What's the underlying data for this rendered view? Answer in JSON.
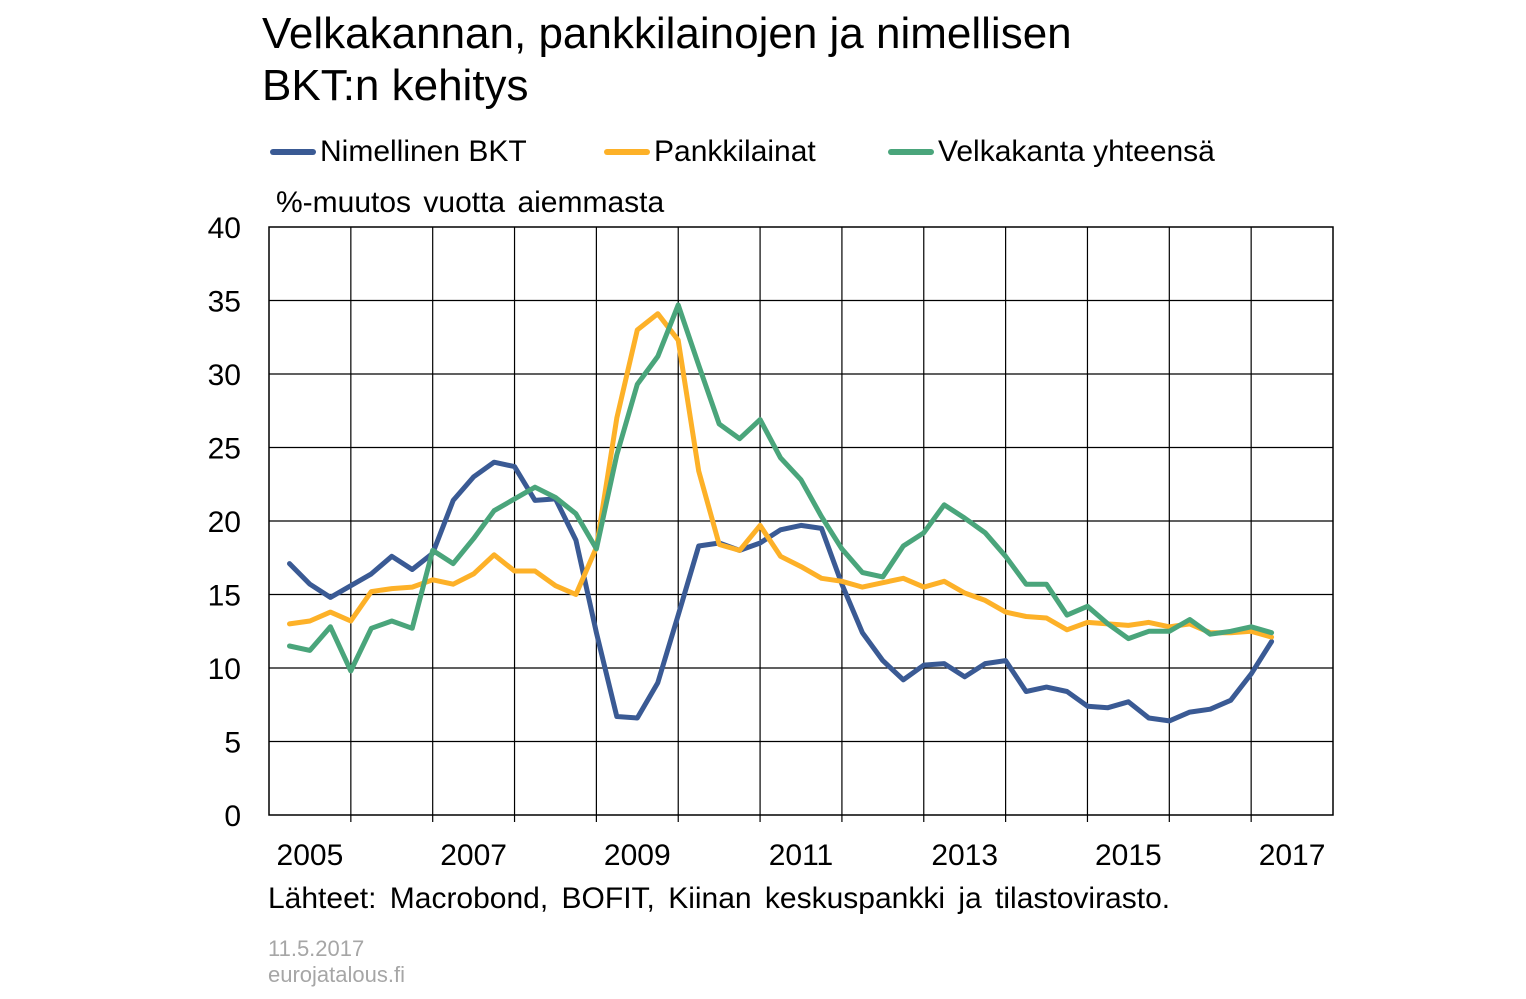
{
  "title_line1": "Velkakannan, pankkilainojen ja nimellisen",
  "title_line2": "BKT:n kehitys",
  "unit_label": "%-muutos vuotta aiemmasta",
  "source": "Lähteet: Macrobond, BOFIT, Kiinan keskuspankki ja tilastovirasto.",
  "date": "11.5.2017",
  "site": "eurojatalous.fi",
  "chart_data": {
    "type": "line",
    "title": "Velkakannan, pankkilainojen ja nimellisen BKT:n kehitys",
    "ylabel": "%-muutos vuotta aiemmasta",
    "xlim": [
      2005,
      2018
    ],
    "ylim": [
      0,
      40
    ],
    "yticks": [
      0,
      5,
      10,
      15,
      20,
      25,
      30,
      35,
      40
    ],
    "xtick_labels": [
      "2005",
      "2007",
      "2009",
      "2011",
      "2013",
      "2015",
      "2017"
    ],
    "xtick_positions": [
      2005,
      2007,
      2009,
      2011,
      2013,
      2015,
      2017
    ],
    "grid": true,
    "legend_position": "top",
    "x_start": 2005.25,
    "x_step": 0.25,
    "series": [
      {
        "name": "Nimellinen BKT",
        "color": "#3a5a94",
        "values": [
          17.1,
          15.7,
          14.8,
          15.6,
          16.4,
          17.6,
          16.7,
          17.8,
          21.4,
          23.0,
          24.0,
          23.7,
          21.4,
          21.5,
          18.7,
          12.4,
          6.7,
          6.6,
          9.0,
          13.6,
          18.3,
          18.5,
          18.0,
          18.5,
          19.4,
          19.7,
          19.5,
          15.7,
          12.4,
          10.5,
          9.2,
          10.2,
          10.3,
          9.4,
          10.3,
          10.5,
          8.4,
          8.7,
          8.4,
          7.4,
          7.3,
          7.7,
          6.6,
          6.4,
          7.0,
          7.2,
          7.8,
          9.6,
          11.8
        ]
      },
      {
        "name": "Pankkilainat",
        "color": "#fdb128",
        "values": [
          13.0,
          13.2,
          13.8,
          13.2,
          15.2,
          15.4,
          15.5,
          16.0,
          15.7,
          16.4,
          17.7,
          16.6,
          16.6,
          15.6,
          15.0,
          18.2,
          27.0,
          33.0,
          34.1,
          32.3,
          23.4,
          18.4,
          18.0,
          19.7,
          17.6,
          16.9,
          16.1,
          15.9,
          15.5,
          15.8,
          16.1,
          15.5,
          15.9,
          15.1,
          14.6,
          13.8,
          13.5,
          13.4,
          12.6,
          13.1,
          13.0,
          12.9,
          13.1,
          12.8,
          13.0,
          12.4,
          12.4,
          12.5,
          12.1
        ]
      },
      {
        "name": "Velkakanta yhteensä",
        "color": "#4aa57b",
        "values": [
          11.5,
          11.2,
          12.8,
          9.8,
          12.7,
          13.2,
          12.7,
          18.0,
          17.1,
          18.8,
          20.7,
          21.5,
          22.3,
          21.6,
          20.5,
          18.1,
          24.5,
          29.3,
          31.2,
          34.7,
          30.6,
          26.6,
          25.6,
          26.9,
          24.3,
          22.8,
          20.3,
          18.1,
          16.5,
          16.2,
          18.3,
          19.2,
          21.1,
          20.2,
          19.2,
          17.6,
          15.7,
          15.7,
          13.6,
          14.2,
          13.0,
          12.0,
          12.5,
          12.5,
          13.3,
          12.3,
          12.5,
          12.8,
          12.4
        ]
      }
    ]
  }
}
